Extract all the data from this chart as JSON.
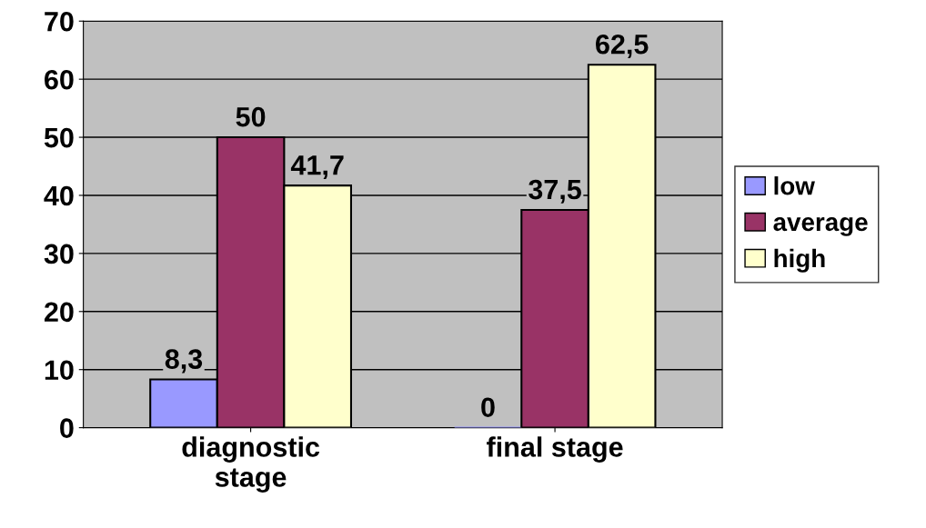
{
  "chart_data": {
    "type": "bar",
    "categories": [
      "diagnostic\nstage",
      "final stage"
    ],
    "series": [
      {
        "name": "low",
        "color": "#9999ff",
        "values": [
          8.3,
          0
        ],
        "value_labels": [
          "8,3",
          "0"
        ]
      },
      {
        "name": "average",
        "color": "#993366",
        "values": [
          50,
          37.5
        ],
        "value_labels": [
          "50",
          "37,5"
        ]
      },
      {
        "name": "high",
        "color": "#ffffcc",
        "values": [
          41.7,
          62.5
        ],
        "value_labels": [
          "41,7",
          "62,5"
        ]
      }
    ],
    "ylim": [
      0,
      70
    ],
    "yticks": [
      0,
      10,
      20,
      30,
      40,
      50,
      60,
      70
    ],
    "grid": "y",
    "legend": "right"
  }
}
